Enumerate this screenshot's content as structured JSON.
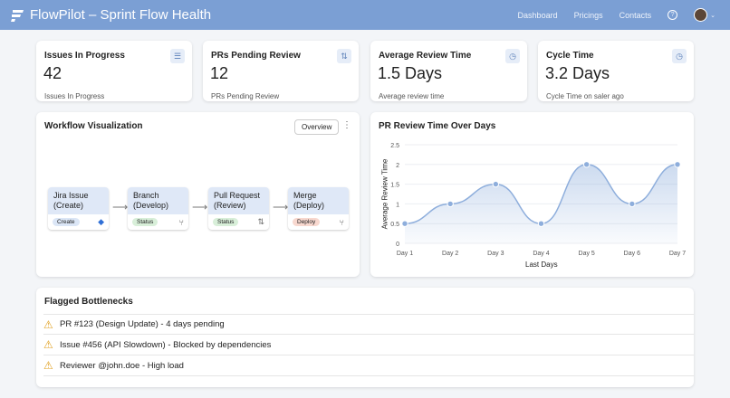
{
  "header": {
    "title": "FlowPilot – Sprint Flow Health",
    "nav": [
      "Dashboard",
      "Pricings",
      "Contacts"
    ],
    "help_icon": "?"
  },
  "kpis": [
    {
      "label": "Issues In Progress",
      "value": "42",
      "sub": "Issues In Progress",
      "icon": "list-icon"
    },
    {
      "label": "PRs Pending Review",
      "value": "12",
      "sub": "PRs Pending Review",
      "icon": "pull-request-icon"
    },
    {
      "label": "Average Review Time",
      "value": "1.5 Days",
      "sub": "Average review time",
      "icon": "clock-icon"
    },
    {
      "label": "Cycle Time",
      "value": "3.2 Days",
      "sub": "Cycle Time on saler ago",
      "icon": "clock-icon"
    }
  ],
  "workflow": {
    "title": "Workflow Visualization",
    "overview_label": "Overview",
    "nodes": [
      {
        "title": "Jira Issue",
        "sub": "(Create)",
        "tag": "Create",
        "tag_color": "#dbe6f6",
        "icon": "◆"
      },
      {
        "title": "Branch",
        "sub": "(Develop)",
        "tag": "Status",
        "tag_color": "#d8efd9",
        "icon": "⑂"
      },
      {
        "title": "Pull Request",
        "sub": "(Review)",
        "tag": "Status",
        "tag_color": "#d8efd9",
        "icon": "⇅"
      },
      {
        "title": "Merge",
        "sub": "(Deploy)",
        "tag": "Deploy",
        "tag_color": "#f8d8cf",
        "icon": "⑂"
      }
    ]
  },
  "chart_data": {
    "type": "line",
    "title": "PR Review Time Over Days",
    "xlabel": "Last Days",
    "ylabel": "Average Review Time",
    "categories": [
      "Day 1",
      "Day 2",
      "Day 3",
      "Day 4",
      "Day 5",
      "Day 6",
      "Day 7"
    ],
    "values": [
      0.5,
      1,
      1.5,
      0.5,
      2,
      1,
      2
    ],
    "ylim": [
      0,
      2.5
    ],
    "yticks": [
      "0",
      "0.5",
      "1",
      "1.5",
      "2",
      "2.5"
    ],
    "grid": true,
    "color": "#8eaedc"
  },
  "bottlenecks": {
    "title": "Flagged Bottlenecks",
    "items": [
      "PR #123 (Design Update) - 4 days pending",
      "Issue #456 (API Slowdown) - Blocked by dependencies",
      "Reviewer @john.doe - High load"
    ]
  }
}
